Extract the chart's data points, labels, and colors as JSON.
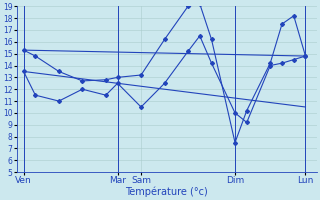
{
  "xlabel": "Température (°c)",
  "background_color": "#cce8ee",
  "grid_color": "#aacccc",
  "line_color": "#2244bb",
  "ylim": [
    5,
    19
  ],
  "yticks": [
    5,
    6,
    7,
    8,
    9,
    10,
    11,
    12,
    13,
    14,
    15,
    16,
    17,
    18,
    19
  ],
  "day_labels": [
    "Ven",
    "Mar",
    "Sam",
    "Dim",
    "Lun"
  ],
  "day_positions": [
    0.0,
    4.0,
    5.0,
    9.0,
    12.0
  ],
  "xlim": [
    -0.3,
    12.5
  ],
  "series1_x": [
    0,
    0.5,
    1.5,
    2.5,
    3.5,
    4.0,
    5.0,
    6.0,
    7.0,
    7.5,
    8.0,
    9.0,
    9.5,
    10.5,
    11.0,
    11.5,
    12.0
  ],
  "series1_y": [
    15.3,
    14.8,
    13.5,
    12.7,
    12.8,
    13.0,
    13.2,
    16.2,
    19.0,
    19.2,
    16.2,
    7.5,
    10.2,
    14.2,
    17.5,
    18.2,
    14.8
  ],
  "series2_x": [
    0,
    0.5,
    1.5,
    2.5,
    3.5,
    4.0,
    5.0,
    6.0,
    7.0,
    7.5,
    8.0,
    9.0,
    9.5,
    10.5,
    11.0,
    11.5,
    12.0
  ],
  "series2_y": [
    13.5,
    11.5,
    11.0,
    12.0,
    11.5,
    12.5,
    10.5,
    12.5,
    15.2,
    16.5,
    14.2,
    10.0,
    9.2,
    14.0,
    14.2,
    14.5,
    14.8
  ],
  "trend1_x": [
    0,
    12.0
  ],
  "trend1_y": [
    15.3,
    14.8
  ],
  "trend2_x": [
    0,
    12.0
  ],
  "trend2_y": [
    13.5,
    10.5
  ],
  "vlines": [
    0.0,
    4.0,
    9.0,
    12.0
  ],
  "ytick_fontsize": 5.5,
  "xtick_fontsize": 6.5,
  "xlabel_fontsize": 7
}
